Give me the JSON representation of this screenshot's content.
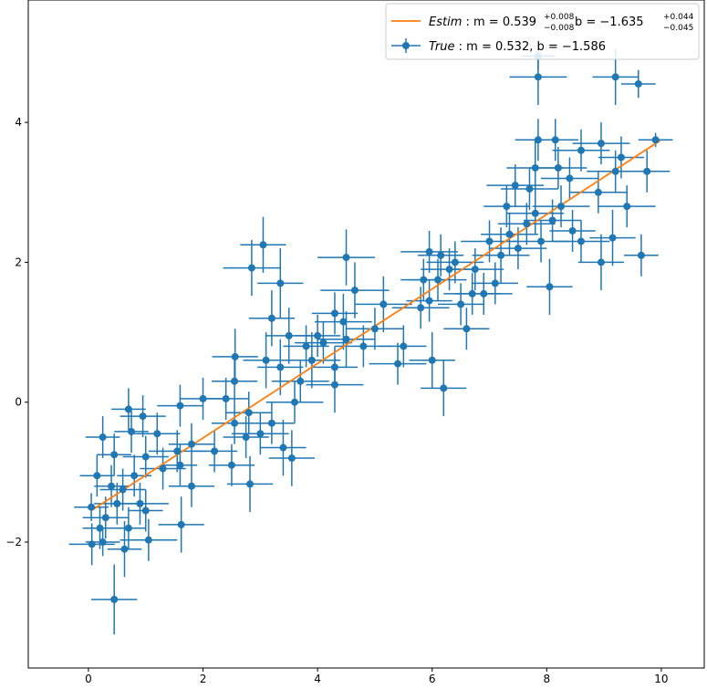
{
  "chart_data": {
    "type": "scatter",
    "title": "",
    "xlabel": "",
    "ylabel": "",
    "xlim": [
      -1.05,
      10.75
    ],
    "ylim": [
      -3.8,
      5.75
    ],
    "xticks": [
      0,
      2,
      4,
      6,
      8,
      10
    ],
    "yticks": [
      -2,
      0,
      2,
      4
    ],
    "xtick_labels": [
      "0",
      "2",
      "4",
      "6",
      "8",
      "10"
    ],
    "ytick_labels": [
      "−2",
      "0",
      "2",
      "4"
    ],
    "grid": false,
    "legend_position": "top-right",
    "colors": {
      "points": "#1f77b4",
      "fit": "#ff7f0e",
      "axes": "#000000"
    },
    "fit_line": {
      "label_name": "Estim",
      "label_m": "m = 0.539",
      "label_m_sup": "+0.008",
      "label_m_sub": "−0.008",
      "label_b": "b = −1.635",
      "label_b_sup": "+0.044",
      "label_b_sub": "−0.045",
      "x": [
        0.05,
        9.98
      ],
      "y": [
        -1.55,
        3.74
      ]
    },
    "points_series": {
      "label_name": "True",
      "label_text": "m = 0.532,  b = −1.586",
      "points": [
        [
          0.45,
          -2.82,
          0.4,
          0.5
        ],
        [
          0.06,
          -2.03,
          0.4,
          0.3
        ],
        [
          0.25,
          -2.0,
          0.3,
          0.2
        ],
        [
          0.63,
          -2.1,
          0.3,
          0.4
        ],
        [
          1.05,
          -1.97,
          0.5,
          0.3
        ],
        [
          0.2,
          -1.8,
          0.3,
          0.3
        ],
        [
          0.7,
          -1.8,
          0.3,
          0.3
        ],
        [
          1.62,
          -1.75,
          0.4,
          0.4
        ],
        [
          0.3,
          -1.65,
          0.4,
          0.3
        ],
        [
          1.0,
          -1.55,
          0.3,
          0.3
        ],
        [
          0.05,
          -1.5,
          0.3,
          0.2
        ],
        [
          0.5,
          -1.45,
          0.4,
          0.3
        ],
        [
          0.9,
          -1.45,
          0.5,
          0.3
        ],
        [
          0.6,
          -1.25,
          0.4,
          0.3
        ],
        [
          1.8,
          -1.2,
          0.4,
          0.3
        ],
        [
          0.4,
          -1.2,
          0.3,
          0.3
        ],
        [
          0.8,
          -1.05,
          0.3,
          0.3
        ],
        [
          0.15,
          -1.05,
          0.3,
          0.3
        ],
        [
          1.3,
          -0.95,
          0.4,
          0.3
        ],
        [
          2.82,
          -1.17,
          0.4,
          0.4
        ],
        [
          1.6,
          -0.9,
          0.3,
          0.3
        ],
        [
          1.0,
          -0.78,
          0.4,
          0.3
        ],
        [
          0.45,
          -0.75,
          0.3,
          0.3
        ],
        [
          1.55,
          -0.7,
          0.5,
          0.3
        ],
        [
          2.5,
          -0.9,
          0.4,
          0.3
        ],
        [
          0.25,
          -0.5,
          0.3,
          0.3
        ],
        [
          0.75,
          -0.42,
          0.3,
          0.3
        ],
        [
          1.2,
          -0.45,
          0.4,
          0.3
        ],
        [
          2.2,
          -0.7,
          0.4,
          0.3
        ],
        [
          3.4,
          -0.65,
          0.4,
          0.4
        ],
        [
          1.8,
          -0.6,
          0.4,
          0.3
        ],
        [
          2.75,
          -0.5,
          0.4,
          0.3
        ],
        [
          3.0,
          -0.45,
          0.5,
          0.3
        ],
        [
          0.95,
          -0.2,
          0.4,
          0.3
        ],
        [
          1.6,
          -0.05,
          0.4,
          0.3
        ],
        [
          0.7,
          -0.1,
          0.3,
          0.3
        ],
        [
          2.0,
          0.05,
          0.4,
          0.3
        ],
        [
          2.55,
          -0.3,
          0.4,
          0.3
        ],
        [
          3.2,
          -0.3,
          0.4,
          0.3
        ],
        [
          3.55,
          -0.8,
          0.4,
          0.4
        ],
        [
          2.4,
          0.05,
          0.4,
          0.3
        ],
        [
          2.55,
          0.3,
          0.4,
          0.3
        ],
        [
          2.56,
          0.65,
          0.4,
          0.4
        ],
        [
          3.7,
          0.3,
          0.5,
          0.3
        ],
        [
          3.35,
          0.5,
          0.4,
          0.4
        ],
        [
          3.1,
          0.6,
          0.4,
          0.4
        ],
        [
          3.9,
          0.6,
          0.5,
          0.4
        ],
        [
          4.3,
          0.25,
          0.5,
          0.4
        ],
        [
          3.5,
          0.95,
          0.4,
          0.4
        ],
        [
          3.8,
          0.8,
          0.4,
          0.3
        ],
        [
          4.1,
          0.85,
          0.5,
          0.3
        ],
        [
          4.3,
          0.5,
          0.4,
          0.3
        ],
        [
          4.5,
          0.9,
          0.5,
          0.4
        ],
        [
          4.8,
          0.8,
          0.5,
          0.3
        ],
        [
          5.0,
          1.05,
          0.5,
          0.3
        ],
        [
          4.3,
          1.27,
          0.4,
          0.3
        ],
        [
          4.45,
          1.15,
          0.5,
          0.4
        ],
        [
          5.15,
          1.4,
          0.5,
          0.4
        ],
        [
          5.5,
          0.8,
          0.4,
          0.3
        ],
        [
          5.4,
          0.55,
          0.5,
          0.3
        ],
        [
          3.2,
          1.2,
          0.4,
          0.4
        ],
        [
          3.35,
          1.7,
          0.4,
          0.5
        ],
        [
          4.65,
          1.6,
          0.6,
          0.4
        ],
        [
          4.5,
          2.07,
          0.5,
          0.4
        ],
        [
          5.95,
          1.45,
          0.4,
          0.3
        ],
        [
          6.1,
          1.75,
          0.5,
          0.3
        ],
        [
          5.8,
          1.35,
          0.5,
          0.3
        ],
        [
          6.5,
          1.4,
          0.4,
          0.3
        ],
        [
          6.6,
          1.05,
          0.4,
          0.3
        ],
        [
          6.7,
          1.55,
          0.5,
          0.3
        ],
        [
          6.0,
          0.6,
          0.4,
          0.4
        ],
        [
          6.2,
          0.2,
          0.4,
          0.4
        ],
        [
          5.85,
          1.75,
          0.4,
          0.3
        ],
        [
          6.3,
          1.9,
          0.5,
          0.3
        ],
        [
          5.95,
          2.15,
          0.5,
          0.3
        ],
        [
          6.15,
          2.1,
          0.4,
          0.3
        ],
        [
          6.4,
          2.0,
          0.5,
          0.3
        ],
        [
          6.75,
          1.9,
          0.5,
          0.3
        ],
        [
          6.9,
          1.55,
          0.5,
          0.3
        ],
        [
          7.1,
          1.7,
          0.4,
          0.3
        ],
        [
          7.2,
          2.1,
          0.5,
          0.4
        ],
        [
          7.0,
          2.3,
          0.5,
          0.3
        ],
        [
          7.35,
          2.4,
          0.5,
          0.3
        ],
        [
          7.5,
          2.2,
          0.5,
          0.3
        ],
        [
          7.65,
          2.55,
          0.5,
          0.3
        ],
        [
          7.3,
          2.8,
          0.4,
          0.3
        ],
        [
          7.45,
          3.1,
          0.5,
          0.3
        ],
        [
          7.8,
          2.7,
          0.5,
          0.3
        ],
        [
          7.9,
          2.3,
          0.5,
          0.3
        ],
        [
          8.1,
          2.6,
          0.5,
          0.3
        ],
        [
          8.25,
          2.8,
          0.5,
          0.3
        ],
        [
          7.8,
          3.35,
          0.5,
          0.4
        ],
        [
          7.7,
          3.05,
          0.5,
          0.3
        ],
        [
          8.2,
          3.35,
          0.5,
          0.3
        ],
        [
          8.4,
          3.2,
          0.5,
          0.3
        ],
        [
          8.6,
          3.6,
          0.5,
          0.3
        ],
        [
          8.9,
          3.0,
          0.5,
          0.3
        ],
        [
          8.95,
          3.7,
          0.5,
          0.3
        ],
        [
          9.2,
          3.3,
          0.5,
          0.3
        ],
        [
          9.3,
          3.5,
          0.4,
          0.3
        ],
        [
          9.15,
          2.35,
          0.4,
          0.4
        ],
        [
          8.95,
          2.0,
          0.4,
          0.4
        ],
        [
          8.05,
          1.65,
          0.4,
          0.4
        ],
        [
          8.6,
          2.3,
          0.5,
          0.3
        ],
        [
          8.45,
          2.45,
          0.4,
          0.3
        ],
        [
          9.4,
          2.8,
          0.5,
          0.3
        ],
        [
          9.65,
          2.1,
          0.3,
          0.3
        ],
        [
          9.75,
          3.3,
          0.4,
          0.3
        ],
        [
          9.9,
          3.75,
          0.3,
          0.1
        ],
        [
          9.6,
          4.55,
          0.3,
          0.2
        ],
        [
          9.2,
          4.65,
          0.4,
          0.4
        ],
        [
          7.85,
          4.65,
          0.5,
          0.4
        ],
        [
          7.85,
          4.95,
          0.3,
          0.2
        ],
        [
          7.85,
          3.75,
          0.4,
          0.3
        ],
        [
          8.15,
          3.75,
          0.4,
          0.3
        ],
        [
          2.85,
          1.92,
          0.5,
          0.4
        ],
        [
          3.05,
          2.25,
          0.4,
          0.4
        ],
        [
          4.0,
          0.95,
          0.4,
          0.3
        ],
        [
          2.8,
          -0.15,
          0.4,
          0.3
        ],
        [
          3.6,
          0.0,
          0.5,
          0.3
        ]
      ]
    }
  }
}
